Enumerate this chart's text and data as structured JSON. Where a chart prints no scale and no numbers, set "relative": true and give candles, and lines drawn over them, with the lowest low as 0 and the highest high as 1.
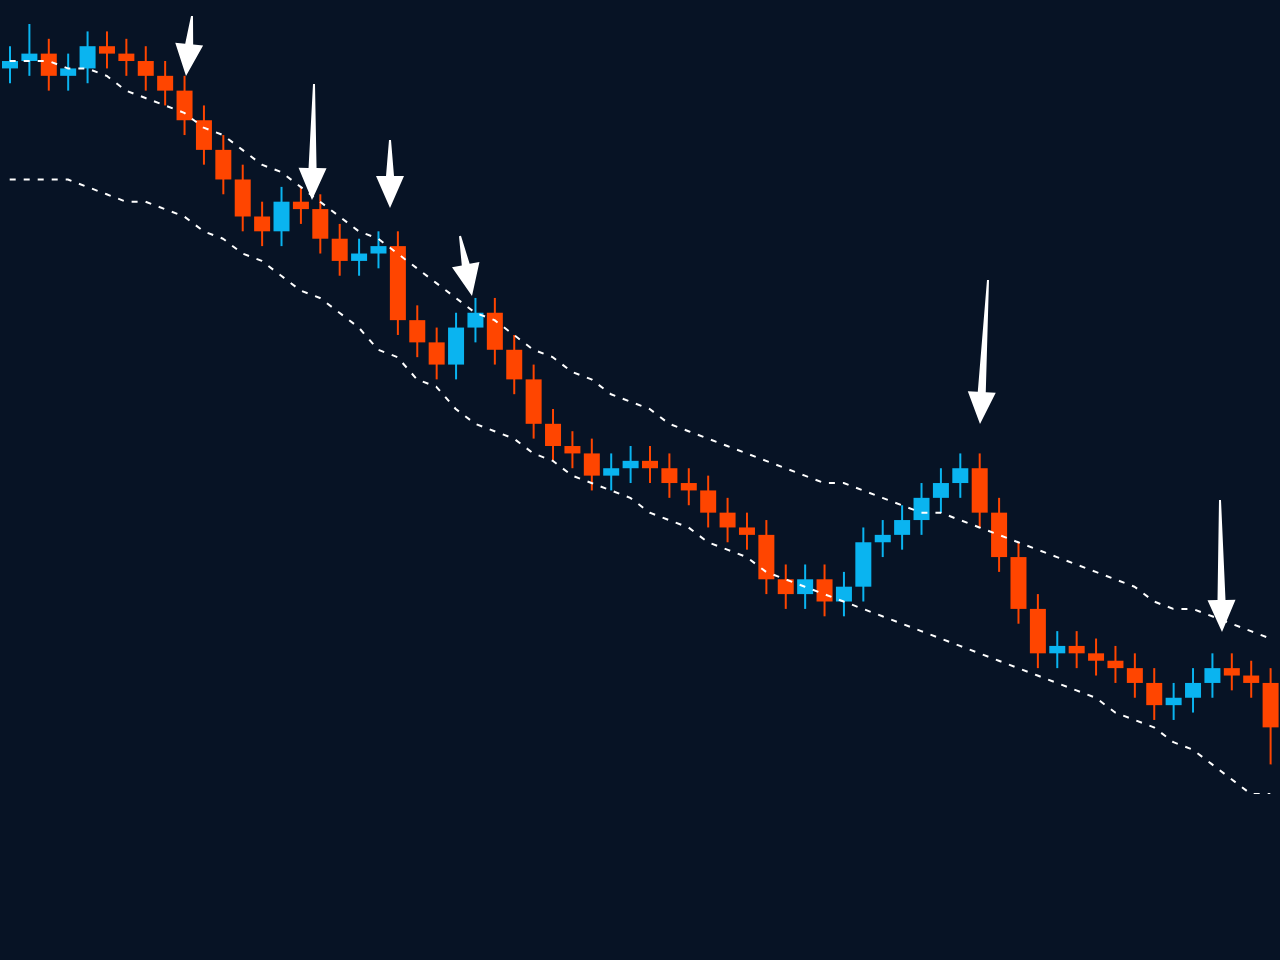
{
  "chart_data": {
    "type": "candlestick",
    "relative": true,
    "categories": [
      null,
      null,
      null,
      null,
      null,
      null,
      null,
      null,
      null,
      null,
      null,
      null,
      null,
      null,
      null,
      null,
      null,
      null,
      null,
      null,
      null,
      null,
      null,
      null,
      null,
      null,
      null,
      null,
      null,
      null,
      null,
      null,
      null,
      null,
      null,
      null,
      null,
      null,
      null,
      null,
      null,
      null,
      null,
      null,
      null,
      null,
      null,
      null,
      null,
      null,
      null,
      null,
      null,
      null,
      null,
      null,
      null,
      null,
      null,
      null,
      null,
      null,
      null,
      null,
      null,
      null
    ],
    "ohlc": [
      [
        0.94,
        0.97,
        0.92,
        0.95
      ],
      [
        0.95,
        1.0,
        0.93,
        0.96
      ],
      [
        0.96,
        0.98,
        0.91,
        0.93
      ],
      [
        0.93,
        0.96,
        0.91,
        0.94
      ],
      [
        0.94,
        0.99,
        0.92,
        0.97
      ],
      [
        0.97,
        0.99,
        0.94,
        0.96
      ],
      [
        0.96,
        0.98,
        0.93,
        0.95
      ],
      [
        0.95,
        0.97,
        0.91,
        0.93
      ],
      [
        0.93,
        0.95,
        0.89,
        0.91
      ],
      [
        0.91,
        0.93,
        0.85,
        0.87
      ],
      [
        0.87,
        0.89,
        0.81,
        0.83
      ],
      [
        0.83,
        0.85,
        0.77,
        0.79
      ],
      [
        0.79,
        0.81,
        0.72,
        0.74
      ],
      [
        0.74,
        0.76,
        0.7,
        0.72
      ],
      [
        0.72,
        0.78,
        0.7,
        0.76
      ],
      [
        0.76,
        0.78,
        0.73,
        0.75
      ],
      [
        0.75,
        0.77,
        0.69,
        0.71
      ],
      [
        0.71,
        0.73,
        0.66,
        0.68
      ],
      [
        0.68,
        0.71,
        0.66,
        0.69
      ],
      [
        0.69,
        0.72,
        0.67,
        0.7
      ],
      [
        0.7,
        0.72,
        0.58,
        0.6
      ],
      [
        0.6,
        0.62,
        0.55,
        0.57
      ],
      [
        0.57,
        0.59,
        0.52,
        0.54
      ],
      [
        0.54,
        0.61,
        0.52,
        0.59
      ],
      [
        0.59,
        0.63,
        0.57,
        0.61
      ],
      [
        0.61,
        0.63,
        0.54,
        0.56
      ],
      [
        0.56,
        0.58,
        0.5,
        0.52
      ],
      [
        0.52,
        0.54,
        0.44,
        0.46
      ],
      [
        0.46,
        0.48,
        0.41,
        0.43
      ],
      [
        0.43,
        0.45,
        0.4,
        0.42
      ],
      [
        0.42,
        0.44,
        0.37,
        0.39
      ],
      [
        0.39,
        0.42,
        0.37,
        0.4
      ],
      [
        0.4,
        0.43,
        0.38,
        0.41
      ],
      [
        0.41,
        0.43,
        0.38,
        0.4
      ],
      [
        0.4,
        0.42,
        0.36,
        0.38
      ],
      [
        0.38,
        0.4,
        0.35,
        0.37
      ],
      [
        0.37,
        0.39,
        0.32,
        0.34
      ],
      [
        0.34,
        0.36,
        0.3,
        0.32
      ],
      [
        0.32,
        0.34,
        0.29,
        0.31
      ],
      [
        0.31,
        0.33,
        0.23,
        0.25
      ],
      [
        0.25,
        0.27,
        0.21,
        0.23
      ],
      [
        0.23,
        0.27,
        0.21,
        0.25
      ],
      [
        0.25,
        0.27,
        0.2,
        0.22
      ],
      [
        0.22,
        0.26,
        0.2,
        0.24
      ],
      [
        0.24,
        0.32,
        0.22,
        0.3
      ],
      [
        0.3,
        0.33,
        0.28,
        0.31
      ],
      [
        0.31,
        0.35,
        0.29,
        0.33
      ],
      [
        0.33,
        0.38,
        0.31,
        0.36
      ],
      [
        0.36,
        0.4,
        0.34,
        0.38
      ],
      [
        0.38,
        0.42,
        0.36,
        0.4
      ],
      [
        0.4,
        0.42,
        0.32,
        0.34
      ],
      [
        0.34,
        0.36,
        0.26,
        0.28
      ],
      [
        0.28,
        0.3,
        0.19,
        0.21
      ],
      [
        0.21,
        0.23,
        0.13,
        0.15
      ],
      [
        0.15,
        0.18,
        0.13,
        0.16
      ],
      [
        0.16,
        0.18,
        0.13,
        0.15
      ],
      [
        0.15,
        0.17,
        0.12,
        0.14
      ],
      [
        0.14,
        0.16,
        0.11,
        0.13
      ],
      [
        0.13,
        0.15,
        0.09,
        0.11
      ],
      [
        0.11,
        0.13,
        0.06,
        0.08
      ],
      [
        0.08,
        0.11,
        0.06,
        0.09
      ],
      [
        0.09,
        0.13,
        0.07,
        0.11
      ],
      [
        0.11,
        0.15,
        0.09,
        0.13
      ],
      [
        0.13,
        0.15,
        0.1,
        0.12
      ],
      [
        0.12,
        0.14,
        0.09,
        0.11
      ],
      [
        0.11,
        0.13,
        0.0,
        0.05
      ]
    ],
    "colors": [
      "#0ab4f0",
      "#0ab4f0",
      "#ff4500",
      "#0ab4f0",
      "#0ab4f0",
      "#ff4500",
      "#ff4500",
      "#ff4500",
      "#ff4500",
      "#ff4500",
      "#ff4500",
      "#ff4500",
      "#ff4500",
      "#ff4500",
      "#0ab4f0",
      "#ff4500",
      "#ff4500",
      "#ff4500",
      "#0ab4f0",
      "#0ab4f0",
      "#ff4500",
      "#ff4500",
      "#ff4500",
      "#0ab4f0",
      "#0ab4f0",
      "#ff4500",
      "#ff4500",
      "#ff4500",
      "#ff4500",
      "#ff4500",
      "#ff4500",
      "#0ab4f0",
      "#0ab4f0",
      "#ff4500",
      "#ff4500",
      "#ff4500",
      "#ff4500",
      "#ff4500",
      "#ff4500",
      "#ff4500",
      "#ff4500",
      "#0ab4f0",
      "#ff4500",
      "#0ab4f0",
      "#0ab4f0",
      "#0ab4f0",
      "#0ab4f0",
      "#0ab4f0",
      "#0ab4f0",
      "#0ab4f0",
      "#ff4500",
      "#ff4500",
      "#ff4500",
      "#ff4500",
      "#0ab4f0",
      "#ff4500",
      "#ff4500",
      "#ff4500",
      "#ff4500",
      "#ff4500",
      "#0ab4f0",
      "#0ab4f0",
      "#0ab4f0",
      "#ff4500",
      "#ff4500",
      "#ff4500"
    ],
    "series": [
      {
        "type": "line",
        "color": "#ffffff",
        "line_style": "dashed",
        "values": [
          0.95,
          0.95,
          0.95,
          0.94,
          0.94,
          0.93,
          0.91,
          0.9,
          0.89,
          0.88,
          0.86,
          0.85,
          0.83,
          0.81,
          0.8,
          0.78,
          0.76,
          0.74,
          0.72,
          0.71,
          0.69,
          0.67,
          0.65,
          0.63,
          0.61,
          0.6,
          0.58,
          0.56,
          0.55,
          0.53,
          0.52,
          0.5,
          0.49,
          0.48,
          0.46,
          0.45,
          0.44,
          0.43,
          0.42,
          0.41,
          0.4,
          0.39,
          0.38,
          0.38,
          0.37,
          0.36,
          0.35,
          0.34,
          0.34,
          0.33,
          0.32,
          0.31,
          0.3,
          0.29,
          0.28,
          0.27,
          0.26,
          0.25,
          0.24,
          0.22,
          0.21,
          0.21,
          0.2,
          0.19,
          0.18,
          0.17
        ]
      },
      {
        "type": "line",
        "color": "#ffffff",
        "line_style": "dashed",
        "values": [
          0.79,
          0.79,
          0.79,
          0.79,
          0.78,
          0.77,
          0.76,
          0.76,
          0.75,
          0.74,
          0.72,
          0.71,
          0.69,
          0.68,
          0.66,
          0.64,
          0.63,
          0.61,
          0.59,
          0.56,
          0.55,
          0.52,
          0.51,
          0.48,
          0.46,
          0.45,
          0.44,
          0.42,
          0.41,
          0.39,
          0.38,
          0.37,
          0.36,
          0.34,
          0.33,
          0.32,
          0.3,
          0.29,
          0.28,
          0.26,
          0.25,
          0.24,
          0.23,
          0.22,
          0.21,
          0.2,
          0.19,
          0.18,
          0.17,
          0.16,
          0.15,
          0.14,
          0.13,
          0.12,
          0.11,
          0.1,
          0.09,
          0.07,
          0.06,
          0.05,
          0.03,
          0.02,
          0.0,
          -0.02,
          -0.04,
          -0.04
        ]
      }
    ]
  }
}
